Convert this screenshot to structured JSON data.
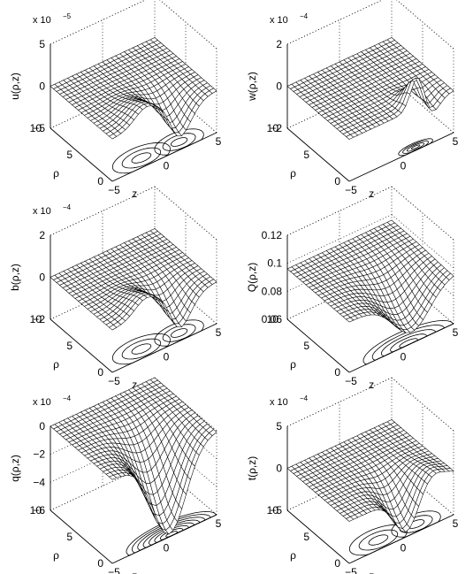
{
  "chart_data": [
    {
      "type": "surface",
      "zlabel": "u(ρ,z)",
      "xlabel": "z",
      "ylabel": "ρ",
      "scale_label": "x 10",
      "scale_exp": "−5",
      "xlim": [
        -5,
        5
      ],
      "ylim": [
        0,
        10
      ],
      "zlim": [
        -5,
        5
      ],
      "xticks": [
        "−5",
        "0",
        "5"
      ],
      "yticks": [
        "0",
        "5",
        "10"
      ],
      "zticks": [
        "−5",
        "0",
        "5"
      ],
      "zticks_values": [
        -5,
        0,
        5
      ],
      "grid": true,
      "shape": "dipole",
      "peak": 4.0,
      "contours_on_floor": true
    },
    {
      "type": "surface",
      "zlabel": "w(ρ,z)",
      "xlabel": "z",
      "ylabel": "ρ",
      "scale_label": "x 10",
      "scale_exp": "−4",
      "xlim": [
        -5,
        5
      ],
      "ylim": [
        0,
        10
      ],
      "zlim": [
        -2,
        2
      ],
      "xticks": [
        "−5",
        "0",
        "5"
      ],
      "yticks": [
        "0",
        "5",
        "10"
      ],
      "zticks": [
        "−2",
        "0",
        "2"
      ],
      "zticks_values": [
        -2,
        0,
        2
      ],
      "grid": true,
      "shape": "sharp_peak",
      "peak": 1.6,
      "contours_on_floor": true
    },
    {
      "type": "surface",
      "zlabel": "b(ρ,z)",
      "xlabel": "z",
      "ylabel": "ρ",
      "scale_label": "x 10",
      "scale_exp": "−4",
      "xlim": [
        -5,
        5
      ],
      "ylim": [
        0,
        10
      ],
      "zlim": [
        -2,
        2
      ],
      "xticks": [
        "−5",
        "0",
        "5"
      ],
      "yticks": [
        "0",
        "5",
        "10"
      ],
      "zticks": [
        "−2",
        "0",
        "2"
      ],
      "zticks_values": [
        -2,
        0,
        2
      ],
      "grid": true,
      "shape": "dipole",
      "peak": 1.6,
      "contours_on_floor": true
    },
    {
      "type": "surface",
      "zlabel": "Q(ρ,z)",
      "xlabel": "z",
      "ylabel": "ρ",
      "scale_label": "",
      "scale_exp": "",
      "xlim": [
        -5,
        5
      ],
      "ylim": [
        0,
        10
      ],
      "zlim": [
        0.06,
        0.12
      ],
      "xticks": [
        "−5",
        "0",
        "5"
      ],
      "yticks": [
        "0",
        "5",
        "10"
      ],
      "zticks": [
        "0.06",
        "0.08",
        "0.1",
        "0.12"
      ],
      "zticks_values": [
        0.06,
        0.08,
        0.1,
        0.12
      ],
      "grid": true,
      "shape": "dip_Q",
      "base": 0.096,
      "depth": 0.028,
      "contours_on_floor": true
    },
    {
      "type": "surface",
      "zlabel": "q(ρ,z)",
      "xlabel": "z",
      "ylabel": "ρ",
      "scale_label": "x 10",
      "scale_exp": "−4",
      "xlim": [
        -5,
        5
      ],
      "ylim": [
        0,
        10
      ],
      "zlim": [
        -6,
        0
      ],
      "xticks": [
        "−5",
        "0",
        "5"
      ],
      "yticks": [
        "0",
        "5",
        "10"
      ],
      "zticks": [
        "−6",
        "−4",
        "−2",
        "0"
      ],
      "zticks_values": [
        -6,
        -4,
        -2,
        0
      ],
      "grid": true,
      "shape": "deep_well",
      "peak": 5.8,
      "contours_on_floor": true
    },
    {
      "type": "surface",
      "zlabel": "t(ρ,z)",
      "xlabel": "z",
      "ylabel": "ρ",
      "scale_label": "x 10",
      "scale_exp": "−4",
      "xlim": [
        -5,
        5
      ],
      "ylim": [
        0,
        10
      ],
      "zlim": [
        -5,
        5
      ],
      "xticks": [
        "−5",
        "0",
        "5"
      ],
      "yticks": [
        "0",
        "5",
        "10"
      ],
      "zticks": [
        "−5",
        "0",
        "5"
      ],
      "zticks_values": [
        -5,
        0,
        5
      ],
      "grid": true,
      "shape": "dipole_neg",
      "peak": 4.5,
      "contours_on_floor": true
    }
  ]
}
